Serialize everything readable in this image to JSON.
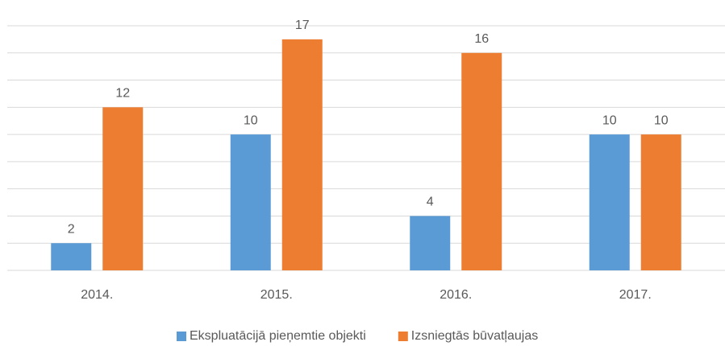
{
  "chart_data": {
    "type": "bar",
    "categories": [
      "2014.",
      "2015.",
      "2016.",
      "2017."
    ],
    "series": [
      {
        "name": "Ekspluatācijā pieņemtie objekti",
        "color": "#5b9bd5",
        "values": [
          2,
          10,
          4,
          10
        ]
      },
      {
        "name": "Izsniegtās būvatļaujas",
        "color": "#ed7d31",
        "values": [
          12,
          17,
          16,
          10
        ]
      }
    ],
    "ylim": [
      0,
      18
    ],
    "yticks": [
      0,
      2,
      4,
      6,
      8,
      10,
      12,
      14,
      16,
      18
    ],
    "grid": true,
    "legend": "bottom"
  }
}
